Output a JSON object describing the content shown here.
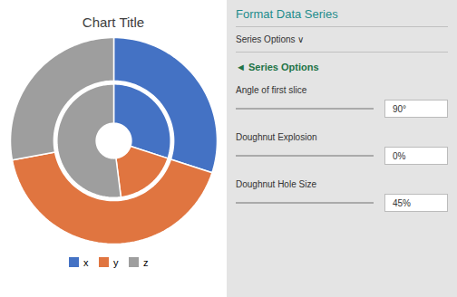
{
  "chart_data": {
    "type": "donut",
    "title": "Chart Title",
    "categories": [
      "x",
      "y",
      "z"
    ],
    "colors": [
      "#4472C4",
      "#E07540",
      "#9E9E9E"
    ],
    "series": [
      {
        "values": [
          30,
          42,
          28
        ]
      },
      {
        "values": [
          30,
          18,
          52
        ]
      }
    ],
    "legend": "bottom",
    "annotations": [
      "Format Data Series",
      "Series Options ∨",
      "◄ Series Options",
      "Angle of first slice",
      "90°",
      "Doughnut Explosion",
      "0%",
      "Doughnut Hole Size",
      "45%"
    ]
  }
}
